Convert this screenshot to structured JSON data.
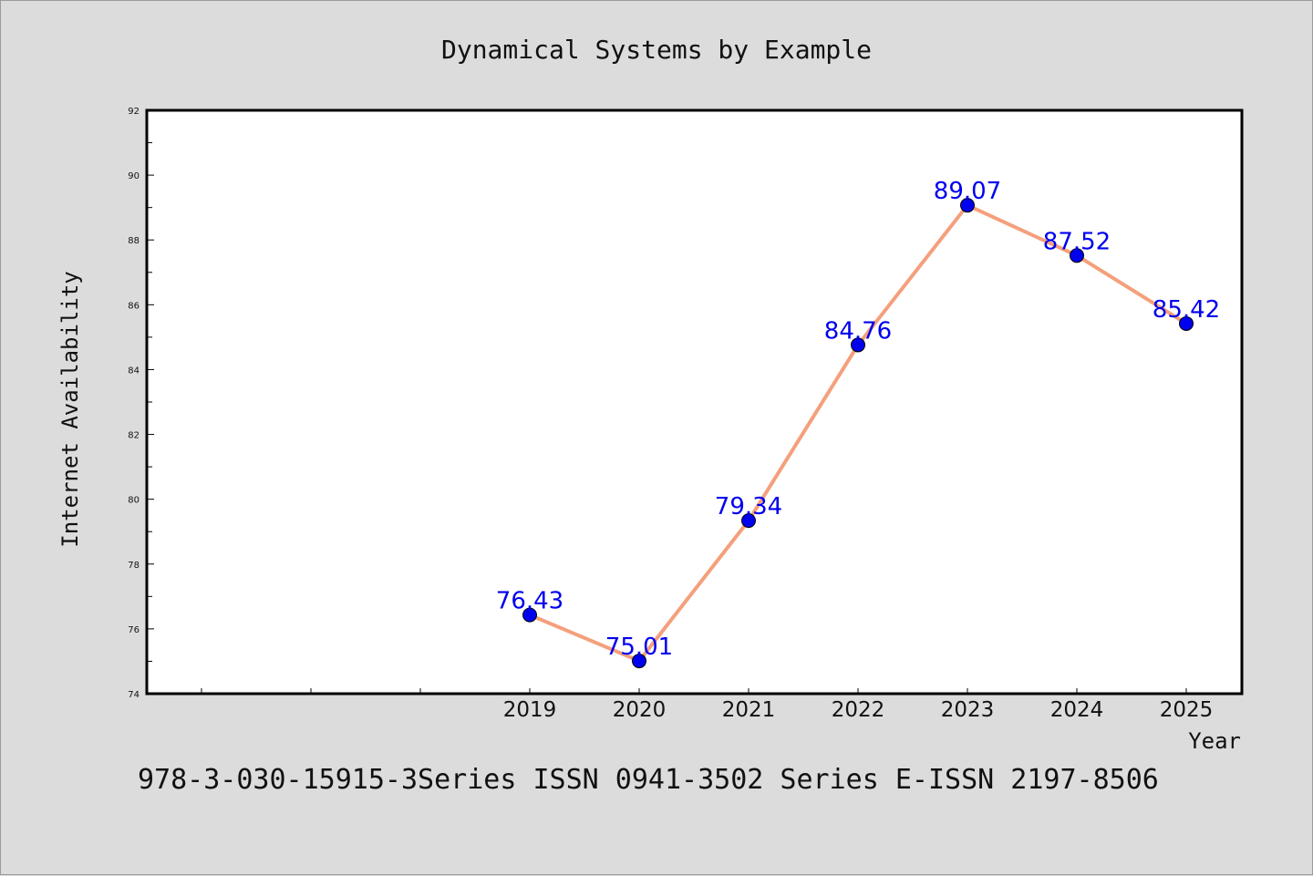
{
  "chart_data": {
    "type": "line",
    "title": "Dynamical Systems by Example",
    "xlabel": "Year",
    "ylabel": "Internet Availability",
    "categories": [
      "2019",
      "2020",
      "2021",
      "2022",
      "2023",
      "2024",
      "2025"
    ],
    "series": [
      {
        "values": [
          76.43,
          75.01,
          79.34,
          84.76,
          89.07,
          87.52,
          85.42
        ],
        "labels": [
          "76.43",
          "75.01",
          "79.34",
          "84.76",
          "89.07",
          "87.52",
          "85.42"
        ]
      }
    ],
    "ylim": [
      74,
      92
    ],
    "yticks": [
      "74",
      "76",
      "78",
      "80",
      "82",
      "84",
      "86",
      "88",
      "90",
      "92"
    ],
    "x_slots": 10,
    "grid": false,
    "line_color": "#f4a07c",
    "marker_color": "#0000ee",
    "label_color": "#0000ee"
  },
  "footer": "978-3-030-15915-3Series ISSN 0941-3502 Series E-ISSN 2197-8506"
}
